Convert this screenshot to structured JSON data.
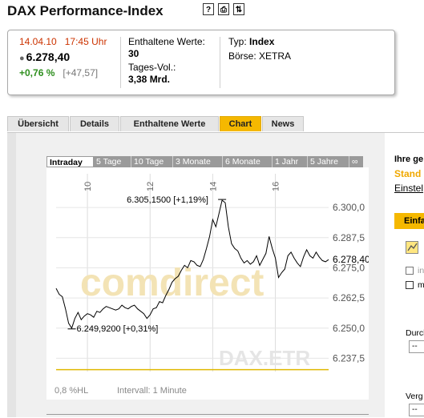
{
  "header": {
    "title": "DAX Performance-Index",
    "icons": [
      "help-icon",
      "print-icon",
      "export-icon"
    ],
    "icon_glyphs": [
      "?",
      "⎙",
      "⇅"
    ]
  },
  "quote": {
    "date": "14.04.10",
    "time": "17:45 Uhr",
    "price": "6.278,40",
    "change_pct": "+0,76 %",
    "change_abs": "[+47,57]",
    "enthaltene_label": "Enthaltene Werte:",
    "enthaltene_value": "30",
    "vol_label": "Tages-Vol.:",
    "vol_value": "3,38 Mrd.",
    "typ_label": "Typ:",
    "typ_value": "Index",
    "boerse_label": "Börse:",
    "boerse_value": "XETRA"
  },
  "tabs": [
    {
      "label": "Übersicht"
    },
    {
      "label": "Details"
    },
    {
      "label": "Enthaltene Werte"
    },
    {
      "label": "Chart"
    },
    {
      "label": "News"
    }
  ],
  "chart_tabs": [
    {
      "label": "Intraday"
    },
    {
      "label": "5 Tage"
    },
    {
      "label": "10 Tage"
    },
    {
      "label": "3 Monate"
    },
    {
      "label": "6 Monate"
    },
    {
      "label": "1 Jahr"
    },
    {
      "label": "5 Jahre"
    },
    {
      "label": "∞"
    }
  ],
  "chart_footer": {
    "hl": "0,8 %HL",
    "interval": "Intervall: 1 Minute"
  },
  "watermark": {
    "brand": "comdirect",
    "symbol": "DAX.ETR"
  },
  "chart_data": {
    "type": "line",
    "title": "",
    "x_ticks": [
      "10",
      "12",
      "14",
      "16"
    ],
    "y_ticks": [
      "6.300,0",
      "6.287,5",
      "6.275,0",
      "6.262,5",
      "6.250,0",
      "6.237,5"
    ],
    "ylim": [
      6232,
      6310
    ],
    "last_label": "6.278,4000",
    "high_label": "6.305,1500 [+1,19%]",
    "low_label": "6.249,9200 [+0,31%]",
    "reference_line": 6232.8,
    "colors": {
      "line": "#000000",
      "reference": "#e0b800",
      "grid": "#dcdcdc"
    },
    "x": [
      9.0,
      9.1,
      9.2,
      9.3,
      9.4,
      9.5,
      9.6,
      9.7,
      9.8,
      9.9,
      10.0,
      10.1,
      10.2,
      10.3,
      10.4,
      10.5,
      10.6,
      10.7,
      10.8,
      10.9,
      11.0,
      11.1,
      11.2,
      11.3,
      11.4,
      11.5,
      11.6,
      11.7,
      11.8,
      11.9,
      12.0,
      12.1,
      12.2,
      12.3,
      12.4,
      12.5,
      12.6,
      12.7,
      12.8,
      12.9,
      13.0,
      13.1,
      13.2,
      13.3,
      13.4,
      13.5,
      13.6,
      13.7,
      13.8,
      13.9,
      14.0,
      14.1,
      14.2,
      14.3,
      14.4,
      14.5,
      14.6,
      14.7,
      14.8,
      14.9,
      15.0,
      15.1,
      15.2,
      15.3,
      15.4,
      15.5,
      15.6,
      15.7,
      15.8,
      15.9,
      16.0,
      16.1,
      16.2,
      16.3,
      16.4,
      16.5,
      16.6,
      16.7,
      16.8,
      16.9,
      17.0,
      17.1,
      17.2,
      17.3,
      17.4,
      17.5,
      17.6,
      17.7
    ],
    "y": [
      6266.5,
      6264.0,
      6263.0,
      6258.0,
      6252.0,
      6250.0,
      6254.0,
      6256.5,
      6253.5,
      6255.0,
      6256.0,
      6255.5,
      6254.5,
      6257.0,
      6256.5,
      6258.0,
      6259.0,
      6258.5,
      6258.0,
      6257.5,
      6258.0,
      6259.5,
      6258.5,
      6258.0,
      6259.0,
      6259.5,
      6258.0,
      6257.0,
      6256.0,
      6254.0,
      6255.5,
      6258.0,
      6258.5,
      6261.0,
      6260.5,
      6263.5,
      6266.0,
      6269.0,
      6270.5,
      6271.5,
      6274.0,
      6276.0,
      6275.0,
      6278.0,
      6277.5,
      6276.0,
      6275.5,
      6278.5,
      6283.0,
      6288.0,
      6295.0,
      6292.0,
      6297.5,
      6303.0,
      6302.0,
      6292.0,
      6285.0,
      6283.0,
      6282.0,
      6279.0,
      6277.0,
      6278.0,
      6276.5,
      6277.5,
      6280.0,
      6276.0,
      6278.5,
      6281.0,
      6288.0,
      6283.0,
      6279.0,
      6271.0,
      6273.0,
      6274.5,
      6280.0,
      6281.5,
      6279.0,
      6277.0,
      6275.5,
      6279.5,
      6282.5,
      6280.0,
      6279.0,
      6281.5,
      6279.5,
      6278.0,
      6277.5,
      6278.4
    ]
  }
}
